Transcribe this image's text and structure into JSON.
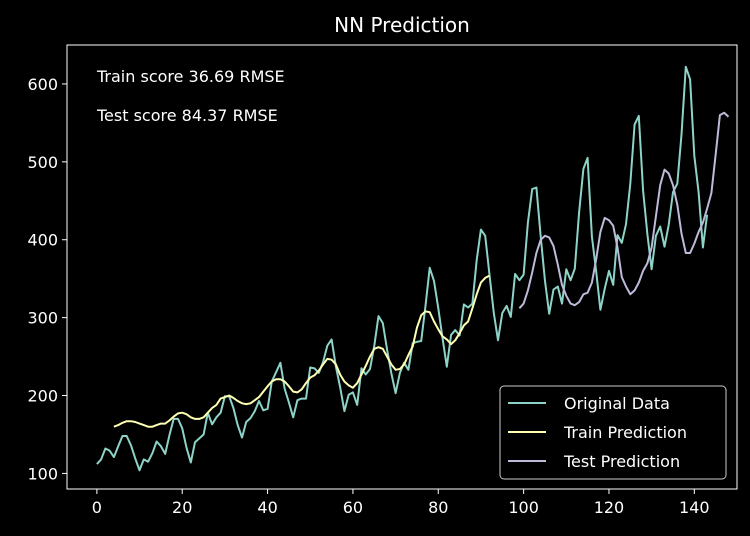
{
  "chart_data": {
    "type": "line",
    "title": "NN Prediction",
    "xlabel": "",
    "ylabel": "",
    "xlim": [
      -7,
      150
    ],
    "ylim": [
      80,
      650
    ],
    "xticks": [
      0,
      20,
      40,
      60,
      80,
      100,
      120,
      140
    ],
    "yticks": [
      100,
      200,
      300,
      400,
      500,
      600
    ],
    "grid": false,
    "legend_position": "bottom-right",
    "annotations": [
      {
        "text": "Train score 36.69 RMSE"
      },
      {
        "text": "Test score 84.37 RMSE"
      }
    ],
    "series": [
      {
        "name": "Original Data",
        "color": "#8dd3c7",
        "x_start": 0,
        "values": [
          112,
          118,
          132,
          129,
          121,
          135,
          148,
          148,
          136,
          119,
          104,
          118,
          115,
          126,
          141,
          135,
          125,
          149,
          170,
          170,
          158,
          133,
          114,
          140,
          145,
          150,
          178,
          163,
          172,
          178,
          199,
          199,
          184,
          162,
          146,
          166,
          171,
          180,
          193,
          181,
          183,
          218,
          230,
          242,
          209,
          191,
          172,
          194,
          196,
          196,
          236,
          235,
          229,
          243,
          264,
          272,
          237,
          211,
          180,
          201,
          204,
          188,
          235,
          227,
          234,
          264,
          302,
          293,
          259,
          229,
          203,
          229,
          242,
          233,
          267,
          269,
          270,
          315,
          364,
          347,
          312,
          274,
          237,
          278,
          284,
          277,
          317,
          313,
          318,
          374,
          413,
          405,
          355,
          306,
          271,
          306,
          315,
          301,
          356,
          348,
          355,
          422,
          465,
          467,
          404,
          347,
          305,
          336,
          340,
          318,
          362,
          348,
          363,
          435,
          491,
          505,
          404,
          359,
          310,
          337,
          360,
          342,
          406,
          396,
          420,
          472,
          548,
          559,
          463,
          407,
          362,
          405,
          417,
          391,
          419,
          461,
          472,
          535,
          622,
          606,
          508,
          461,
          390,
          432
        ]
      },
      {
        "name": "Train Prediction",
        "color": "#ffffb3",
        "x_start": 4,
        "values": [
          160,
          162,
          165,
          167,
          167,
          166,
          164,
          162,
          160,
          160,
          162,
          164,
          164,
          168,
          173,
          177,
          178,
          176,
          172,
          170,
          170,
          172,
          178,
          184,
          188,
          196,
          198,
          200,
          197,
          193,
          190,
          189,
          190,
          194,
          198,
          205,
          212,
          218,
          221,
          221,
          218,
          212,
          205,
          204,
          208,
          216,
          223,
          226,
          232,
          240,
          247,
          246,
          240,
          227,
          218,
          213,
          210,
          216,
          227,
          238,
          250,
          260,
          262,
          260,
          250,
          240,
          233,
          234,
          240,
          252,
          263,
          287,
          303,
          308,
          307,
          295,
          285,
          276,
          272,
          266,
          271,
          280,
          290,
          295,
          312,
          330,
          345,
          351,
          354
        ]
      },
      {
        "name": "Test Prediction",
        "color": "#bebada",
        "x_start": 99,
        "values": [
          312,
          318,
          335,
          358,
          383,
          400,
          405,
          403,
          392,
          368,
          342,
          328,
          318,
          316,
          320,
          330,
          332,
          345,
          375,
          410,
          428,
          425,
          418,
          390,
          352,
          340,
          330,
          335,
          345,
          360,
          370,
          390,
          430,
          470,
          490,
          485,
          470,
          445,
          408,
          383,
          383,
          395,
          410,
          422,
          440,
          460,
          510,
          560,
          563,
          558
        ]
      }
    ]
  }
}
